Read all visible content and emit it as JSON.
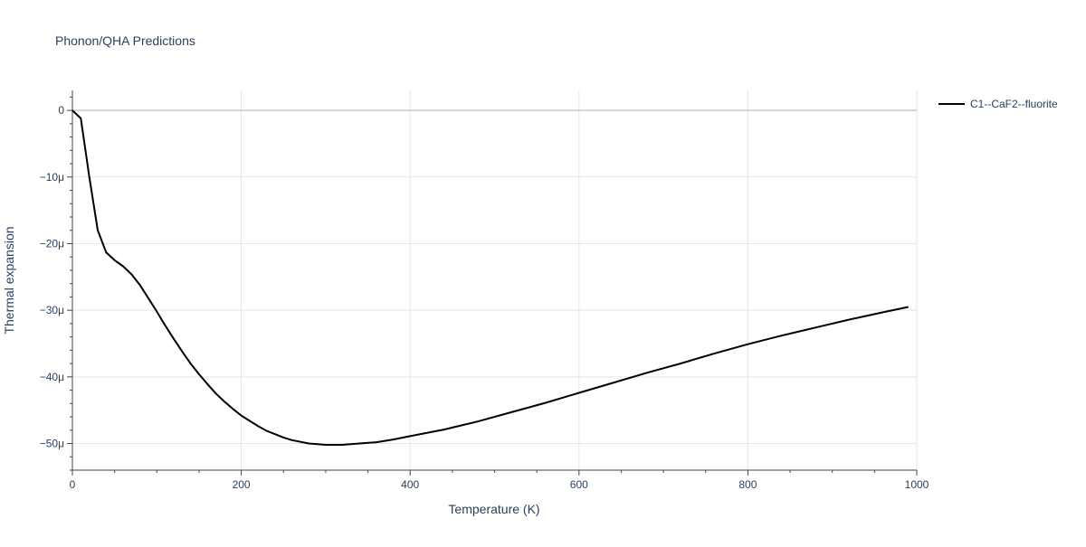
{
  "chart_data": {
    "type": "line",
    "title": "Phonon/QHA Predictions",
    "xlabel": "Temperature (K)",
    "ylabel": "Thermal expansion",
    "xlim": [
      0,
      1000
    ],
    "ylim": [
      -5.4e-05,
      3e-06
    ],
    "grid": true,
    "legend_position": "top-right outside",
    "x_ticks": [
      {
        "value": 0,
        "label": "0"
      },
      {
        "value": 200,
        "label": "200"
      },
      {
        "value": 400,
        "label": "400"
      },
      {
        "value": 600,
        "label": "600"
      },
      {
        "value": 800,
        "label": "800"
      },
      {
        "value": 1000,
        "label": "1000"
      }
    ],
    "y_ticks": [
      {
        "value": 0,
        "label": "0"
      },
      {
        "value": -1e-05,
        "label": "−10μ"
      },
      {
        "value": -2e-05,
        "label": "−20μ"
      },
      {
        "value": -3e-05,
        "label": "−30μ"
      },
      {
        "value": -4e-05,
        "label": "−40μ"
      },
      {
        "value": -5e-05,
        "label": "−50μ"
      }
    ],
    "series": [
      {
        "name": "C1--CaF2--fluorite",
        "color": "#000000",
        "x": [
          0,
          10,
          20,
          30,
          40,
          50,
          60,
          70,
          80,
          90,
          100,
          110,
          120,
          130,
          140,
          150,
          160,
          170,
          180,
          190,
          200,
          210,
          220,
          230,
          240,
          250,
          260,
          280,
          300,
          320,
          340,
          360,
          380,
          400,
          440,
          480,
          520,
          560,
          600,
          640,
          680,
          720,
          760,
          800,
          840,
          880,
          920,
          960,
          990
        ],
        "y": [
          0,
          -1.2e-06,
          -1e-05,
          -1.8e-05,
          -2.13e-05,
          -2.25e-05,
          -2.34e-05,
          -2.46e-05,
          -2.62e-05,
          -2.82e-05,
          -3.02e-05,
          -3.23e-05,
          -3.43e-05,
          -3.62e-05,
          -3.8e-05,
          -3.96e-05,
          -4.11e-05,
          -4.25e-05,
          -4.37e-05,
          -4.48e-05,
          -4.58e-05,
          -4.66e-05,
          -4.74e-05,
          -4.81e-05,
          -4.86e-05,
          -4.91e-05,
          -4.95e-05,
          -5e-05,
          -5.02e-05,
          -5.02e-05,
          -5e-05,
          -4.98e-05,
          -4.94e-05,
          -4.89e-05,
          -4.79e-05,
          -4.67e-05,
          -4.53e-05,
          -4.39e-05,
          -4.24e-05,
          -4.09e-05,
          -3.94e-05,
          -3.8e-05,
          -3.65e-05,
          -3.51e-05,
          -3.38e-05,
          -3.26e-05,
          -3.14e-05,
          -3.03e-05,
          -2.95e-05
        ]
      }
    ]
  }
}
